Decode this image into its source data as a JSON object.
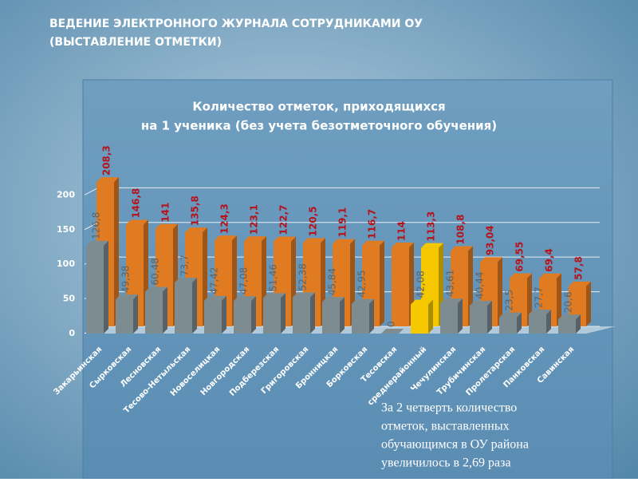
{
  "slide": {
    "title": [
      "ВЕДЕНИЕ ЭЛЕКТРОННОГО ЖУРНАЛА СОТРУДНИКАМИ ОУ",
      "(ВЫСТАВЛЕНИЕ ОТМЕТКИ)"
    ],
    "note": [
      "За 2 четверть количество",
      "отметок, выставленных",
      "обучающимся в ОУ района",
      "увеличилось в 2,69 раза"
    ]
  },
  "chart_data": {
    "type": "bar3d",
    "title": [
      "Количество отметок, приходящихся",
      "на 1 ученика (без учета безотметочного обучения)"
    ],
    "categories": [
      "Закарьинская",
      "Сырковская",
      "Лесновская",
      "Тесово-Нетыльская",
      "Новоселицкая",
      "Новгородская",
      "Подберезская",
      "Григоровская",
      "Бронницкая",
      "Борковская",
      "Тесовская",
      "среднерайонный",
      "Чечулинская",
      "Трубичинская",
      "Пролетарская",
      "Панковская",
      "Савинская"
    ],
    "series": [
      {
        "color": "#e07b22",
        "label_color": "#b5141c",
        "colors": [
          "#e07b22",
          "#e07b22",
          "#e07b22",
          "#e07b22",
          "#e07b22",
          "#e07b22",
          "#e07b22",
          "#e07b22",
          "#e07b22",
          "#e07b22",
          "#e07b22",
          "#f5c800",
          "#e07b22",
          "#e07b22",
          "#e07b22",
          "#e07b22",
          "#e07b22"
        ],
        "values": [
          208.3,
          146.8,
          141,
          135.8,
          124.3,
          123.1,
          122.7,
          120.5,
          119.1,
          116.7,
          114,
          113.3,
          108.8,
          93.04,
          69.55,
          69.4,
          57.8
        ],
        "value_labels": [
          "208,3",
          "146,8",
          "141",
          "135,8",
          "124,3",
          "123,1",
          "122,7",
          "120,5",
          "119,1",
          "116,7",
          "114",
          "113,3",
          "108,8",
          "93,04",
          "69,55",
          "69,4",
          "57,8"
        ]
      },
      {
        "color": "#7d8c91",
        "label_color": "#5a6468",
        "colors": [
          "#7d8c91",
          "#7d8c91",
          "#7d8c91",
          "#7d8c91",
          "#7d8c91",
          "#7d8c91",
          "#7d8c91",
          "#7d8c91",
          "#7d8c91",
          "#7d8c91",
          "#7d8c91",
          "#f5c800",
          "#7d8c91",
          "#7d8c91",
          "#7d8c91",
          "#7d8c91",
          "#7d8c91"
        ],
        "values": [
          126.8,
          49.38,
          60.48,
          73.7,
          47.42,
          47.08,
          51.46,
          52.38,
          45.84,
          42.95,
          0,
          42.08,
          43.61,
          40.44,
          23.5,
          27.7,
          20.6
        ],
        "value_labels": [
          "126,8",
          "49,38",
          "60,48",
          "73,7",
          "47,42",
          "47,08",
          "51,46",
          "52,38",
          "45,84",
          "42,95",
          "0",
          "42,08",
          "43,61",
          "40,44",
          "23,5",
          "27,7",
          "20,6"
        ]
      }
    ],
    "ylim": [
      0,
      220
    ],
    "yticks": [
      0,
      50,
      100,
      150,
      200
    ],
    "grid": true
  }
}
